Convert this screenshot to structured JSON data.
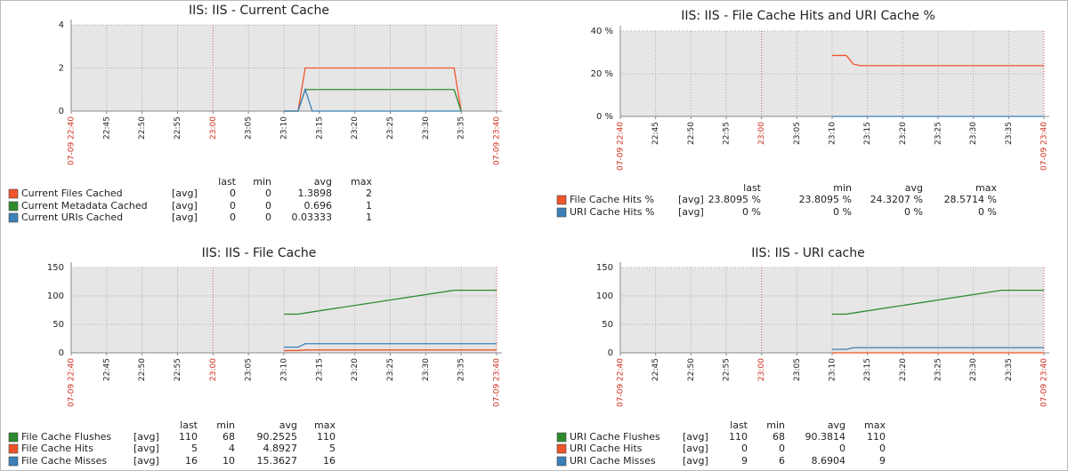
{
  "chart_data": [
    {
      "type": "line",
      "title": "IIS: IIS - Current Cache",
      "xlim": [
        "22:40",
        "23:40"
      ],
      "xticks": [
        {
          "value": "22:40",
          "label": "07-09 22:40"
        },
        "22:45",
        "22:50",
        "22:55",
        "23:00",
        "23:05",
        "23:10",
        "23:15",
        "23:20",
        "23:25",
        "23:30",
        "23:35",
        {
          "value": "23:40",
          "label": "07-09 23:40"
        }
      ],
      "ylim": [
        0,
        4
      ],
      "yticks": [
        0,
        2,
        4
      ],
      "grid": true,
      "x": [
        "23:10",
        "23:12",
        "23:13",
        "23:14",
        "23:34",
        "23:35"
      ],
      "legend_columns": [
        "last",
        "min",
        "avg",
        "max"
      ],
      "series": [
        {
          "name": "Current Files Cached",
          "color": "#f0542a",
          "func": "[avg]",
          "values": [
            0,
            0,
            2,
            2,
            2,
            0
          ],
          "stats": [
            0,
            0,
            1.3898,
            2
          ]
        },
        {
          "name": "Current Metadata Cached",
          "color": "#2e8b2e",
          "func": "[avg]",
          "values": [
            0,
            0,
            1,
            1,
            1,
            0
          ],
          "stats": [
            0,
            0,
            0.696,
            1
          ]
        },
        {
          "name": "Current URIs Cached",
          "color": "#3b80b8",
          "func": "[avg]",
          "values": [
            0,
            0,
            1,
            0,
            0,
            0
          ],
          "stats": [
            0,
            0,
            0.03333,
            1
          ]
        }
      ]
    },
    {
      "type": "line",
      "title": "IIS: IIS - File Cache Hits and URI Cache %",
      "xlim": [
        "22:40",
        "23:40"
      ],
      "xticks": [
        {
          "value": "22:40",
          "label": "07-09 22:40"
        },
        "22:45",
        "22:50",
        "22:55",
        "23:00",
        "23:05",
        "23:10",
        "23:15",
        "23:20",
        "23:25",
        "23:30",
        "23:35",
        {
          "value": "23:40",
          "label": "07-09 23:40"
        }
      ],
      "ylim": [
        0,
        40
      ],
      "yticks": [
        {
          "value": 0,
          "label": "0 %"
        },
        {
          "value": 20,
          "label": "20 %"
        },
        {
          "value": 40,
          "label": "40 %"
        }
      ],
      "grid": true,
      "x": [
        "23:10",
        "23:12",
        "23:13",
        "23:14",
        "23:40"
      ],
      "legend_columns": [
        "last",
        "min",
        "avg",
        "max"
      ],
      "series": [
        {
          "name": "File Cache Hits %",
          "color": "#f0542a",
          "func": "[avg]",
          "values": [
            28.5714,
            28.5714,
            24.5,
            23.8095,
            23.8095
          ],
          "stats": [
            {
              "value": 23.8095,
              "label": "23.8095 %"
            },
            {
              "value": 23.8095,
              "label": "23.8095 %"
            },
            {
              "value": 24.3207,
              "label": "24.3207 %"
            },
            {
              "value": 28.5714,
              "label": "28.5714 %"
            }
          ]
        },
        {
          "name": "URI Cache Hits %",
          "color": "#3b80b8",
          "func": "[avg]",
          "values": [
            0,
            0,
            0,
            0,
            0
          ],
          "stats": [
            {
              "value": 0,
              "label": "0 %"
            },
            {
              "value": 0,
              "label": "0 %"
            },
            {
              "value": 0,
              "label": "0 %"
            },
            {
              "value": 0,
              "label": "0 %"
            }
          ]
        }
      ]
    },
    {
      "type": "line",
      "title": "IIS: IIS - File Cache",
      "xlim": [
        "22:40",
        "23:40"
      ],
      "xticks": [
        {
          "value": "22:40",
          "label": "07-09 22:40"
        },
        "22:45",
        "22:50",
        "22:55",
        "23:00",
        "23:05",
        "23:10",
        "23:15",
        "23:20",
        "23:25",
        "23:30",
        "23:35",
        {
          "value": "23:40",
          "label": "07-09 23:40"
        }
      ],
      "ylim": [
        0,
        150
      ],
      "yticks": [
        0,
        50,
        100,
        150
      ],
      "grid": true,
      "x": [
        "23:10",
        "23:12",
        "23:13",
        "23:34",
        "23:40"
      ],
      "legend_columns": [
        "last",
        "min",
        "avg",
        "max"
      ],
      "series": [
        {
          "name": "File Cache Flushes",
          "color": "#2e8b2e",
          "func": "[avg]",
          "values": [
            68,
            68,
            70,
            110,
            110
          ],
          "stats": [
            110,
            68,
            90.2525,
            110
          ]
        },
        {
          "name": "File Cache Hits",
          "color": "#f0542a",
          "func": "[avg]",
          "values": [
            4,
            4,
            5,
            5,
            5
          ],
          "stats": [
            5,
            4,
            4.8927,
            5
          ]
        },
        {
          "name": "File Cache Misses",
          "color": "#3b80b8",
          "func": "[avg]",
          "values": [
            10,
            10,
            16,
            16,
            16
          ],
          "stats": [
            16,
            10,
            15.3627,
            16
          ]
        }
      ]
    },
    {
      "type": "line",
      "title": "IIS: IIS - URI cache",
      "xlim": [
        "22:40",
        "23:40"
      ],
      "xticks": [
        {
          "value": "22:40",
          "label": "07-09 22:40"
        },
        "22:45",
        "22:50",
        "22:55",
        "23:00",
        "23:05",
        "23:10",
        "23:15",
        "23:20",
        "23:25",
        "23:30",
        "23:35",
        {
          "value": "23:40",
          "label": "07-09 23:40"
        }
      ],
      "ylim": [
        0,
        150
      ],
      "yticks": [
        0,
        50,
        100,
        150
      ],
      "grid": true,
      "x": [
        "23:10",
        "23:12",
        "23:13",
        "23:34",
        "23:40"
      ],
      "legend_columns": [
        "last",
        "min",
        "avg",
        "max"
      ],
      "series": [
        {
          "name": "URI Cache Flushes",
          "color": "#2e8b2e",
          "func": "[avg]",
          "values": [
            68,
            68,
            70,
            110,
            110
          ],
          "stats": [
            110,
            68,
            90.3814,
            110
          ]
        },
        {
          "name": "URI Cache Hits",
          "color": "#f0542a",
          "func": "[avg]",
          "values": [
            0,
            0,
            0,
            0,
            0
          ],
          "stats": [
            0,
            0,
            0,
            0
          ]
        },
        {
          "name": "URI Cache Misses",
          "color": "#3b80b8",
          "func": "[avg]",
          "values": [
            6,
            6,
            9,
            9,
            9
          ],
          "stats": [
            9,
            6,
            8.6904,
            9
          ]
        }
      ]
    }
  ]
}
